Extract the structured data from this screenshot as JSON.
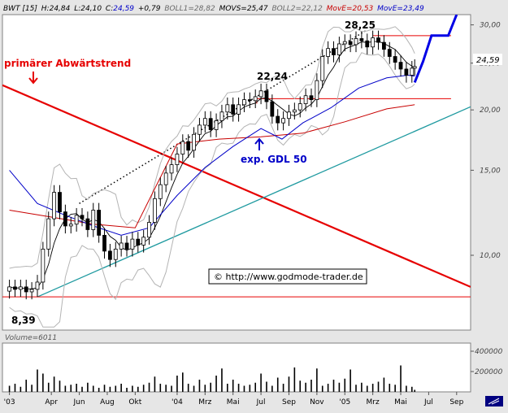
{
  "header": {
    "symbol": "BWT [15]",
    "high_label": "H:",
    "high": "24,84",
    "low_label": "L:",
    "low": "24,10",
    "close_label": "C:",
    "close": "24,59",
    "change": "+0,79",
    "boll1_label": "BOLL1=",
    "boll1": "28,82",
    "movs_label": "MOVS=",
    "movs": "25,47",
    "boll2_label": "BOLL2=",
    "boll2": "22,12",
    "move1_label": "MovE=",
    "move1": "20,53",
    "move2_label": "MovE=",
    "move2": "23,49"
  },
  "volume_label": "Volume=6011",
  "watermark": "© http://www.godmode-trader.de",
  "last_price_label": "24,59",
  "colors": {
    "background": "#ffffff",
    "frame": "#e6e6e6",
    "candle": "#000000",
    "bollinger": "#b4b4b4",
    "sma": "#000000",
    "ema_long": "#c80000",
    "ema_short": "#0000c8",
    "trendline_red": "#e60000",
    "trendline_teal": "#1f9aa0",
    "forecast": "#0000e6",
    "resistance": "#e60000"
  },
  "chart_data": [
    {
      "type": "candlestick",
      "title": "BWT [15]",
      "scale": "log",
      "ylim": [
        7.0,
        31.5
      ],
      "y_ticks": [
        "30,00",
        "25,00",
        "20,00",
        "15,00",
        "10,00"
      ],
      "y_tick_values": [
        30,
        25,
        20,
        15,
        10
      ],
      "x_ticks": [
        "'03",
        "Apr",
        "Jun",
        "Aug",
        "Okt",
        "'04",
        "Mrz",
        "Mai",
        "Jul",
        "Sep",
        "Nov",
        "'05",
        "Mrz",
        "Mai",
        "Jul",
        "Sep"
      ],
      "x_tick_months": [
        0,
        3,
        5,
        7,
        9,
        12,
        14,
        16,
        18,
        20,
        22,
        24,
        26,
        28,
        30,
        32
      ],
      "x_range_months": [
        -0.5,
        33.0
      ],
      "series": [
        {
          "type": "candles",
          "months": [
            0.0,
            0.4,
            0.8,
            1.2,
            1.6,
            2.0,
            2.4,
            2.8,
            3.2,
            3.6,
            4.0,
            4.4,
            4.8,
            5.2,
            5.6,
            6.0,
            6.4,
            6.8,
            7.2,
            7.6,
            8.0,
            8.4,
            8.8,
            9.2,
            9.6,
            10.0,
            10.4,
            10.8,
            11.2,
            11.6,
            12.0,
            12.4,
            12.8,
            13.2,
            13.6,
            14.0,
            14.4,
            14.8,
            15.2,
            15.6,
            16.0,
            16.4,
            16.8,
            17.2,
            17.6,
            18.0,
            18.4,
            18.8,
            19.2,
            19.6,
            20.0,
            20.4,
            20.8,
            21.2,
            21.6,
            22.0,
            22.4,
            22.8,
            23.2,
            23.6,
            24.0,
            24.4,
            24.8,
            25.2,
            25.6,
            26.0,
            26.4,
            26.8,
            27.2,
            27.6,
            28.0,
            28.4,
            28.8,
            29.0
          ],
          "close": [
            8.6,
            8.5,
            8.6,
            8.4,
            8.5,
            8.8,
            10.3,
            11.9,
            13.5,
            12.3,
            11.5,
            11.6,
            12.1,
            11.9,
            11.3,
            12.4,
            11.0,
            10.2,
            9.8,
            10.3,
            10.6,
            10.3,
            10.8,
            10.5,
            10.9,
            11.7,
            13.1,
            14.0,
            14.8,
            15.4,
            16.2,
            17.2,
            16.5,
            17.8,
            18.6,
            19.2,
            18.2,
            19.0,
            19.8,
            20.5,
            19.6,
            20.5,
            21.0,
            20.9,
            21.3,
            21.9,
            20.8,
            19.4,
            18.8,
            19.2,
            19.8,
            20.0,
            20.6,
            21.4,
            21.0,
            23.0,
            25.8,
            26.8,
            26.0,
            27.4,
            27.7,
            27.3,
            28.1,
            27.8,
            27.0,
            28.2,
            27.6,
            26.7,
            25.8,
            25.1,
            24.3,
            23.6,
            24.4,
            24.59
          ],
          "note": "approximate weekly closes read from the chart"
        },
        {
          "name": "MovE=20,53",
          "type": "line",
          "months": [
            0,
            3,
            6,
            9,
            12,
            15,
            18,
            21,
            24,
            27,
            29
          ],
          "values": [
            12.4,
            12.0,
            11.6,
            11.4,
            17.0,
            17.4,
            17.6,
            17.9,
            18.9,
            20.1,
            20.5
          ]
        },
        {
          "name": "MovE=23,49",
          "type": "line",
          "months": [
            0,
            2,
            4,
            6,
            8,
            10,
            12,
            14,
            16,
            18,
            19.5,
            21,
            23,
            25,
            27,
            28.5,
            29
          ],
          "values": [
            15.0,
            12.8,
            12.1,
            11.5,
            11.0,
            11.4,
            13.3,
            15.2,
            16.8,
            18.3,
            17.4,
            18.8,
            20.2,
            22.2,
            23.3,
            23.6,
            23.5
          ]
        }
      ],
      "trendlines": {
        "red_downtrend": {
          "from": [
            -0.5,
            22.5
          ],
          "to": [
            33.0,
            8.6
          ]
        },
        "teal_uptrend": {
          "from": [
            2.0,
            8.2
          ],
          "to": [
            33.0,
            20.3
          ]
        },
        "dotted_upper": {
          "from": [
            5.0,
            12.8
          ],
          "to": [
            25.6,
            29.3
          ]
        },
        "horizontal_red": [
          28.5,
          21.1,
          8.2
        ],
        "forecast_blue": {
          "months": [
            29.0,
            29.6,
            30.2,
            31.4,
            32.0
          ],
          "values": [
            22.8,
            25.2,
            28.5,
            28.5,
            31.5
          ]
        }
      },
      "annotations": [
        {
          "text": "primärer Abwärtstrend"
        },
        {
          "text": "22,24"
        },
        {
          "text": "28,25"
        },
        {
          "text": "exp. GDL 50"
        },
        {
          "text": "8,39"
        }
      ]
    },
    {
      "type": "bar",
      "title": "Volume=6011",
      "y_ticks": [
        "400000",
        "200000"
      ],
      "y_tick_values": [
        400000,
        200000
      ],
      "ylim": [
        0,
        480000
      ],
      "note": "approximate weekly volumes",
      "values": [
        60000,
        80000,
        50000,
        120000,
        70000,
        220000,
        180000,
        90000,
        150000,
        110000,
        60000,
        70000,
        80000,
        50000,
        90000,
        60000,
        40000,
        70000,
        50000,
        60000,
        80000,
        40000,
        60000,
        50000,
        70000,
        90000,
        150000,
        80000,
        70000,
        60000,
        160000,
        190000,
        80000,
        60000,
        120000,
        70000,
        90000,
        160000,
        230000,
        80000,
        120000,
        80000,
        60000,
        70000,
        90000,
        180000,
        100000,
        60000,
        140000,
        80000,
        150000,
        240000,
        110000,
        90000,
        120000,
        230000,
        60000,
        80000,
        120000,
        90000,
        130000,
        220000,
        70000,
        90000,
        60000,
        80000,
        100000,
        140000,
        80000,
        70000,
        260000,
        60000,
        50000,
        20000
      ]
    }
  ]
}
